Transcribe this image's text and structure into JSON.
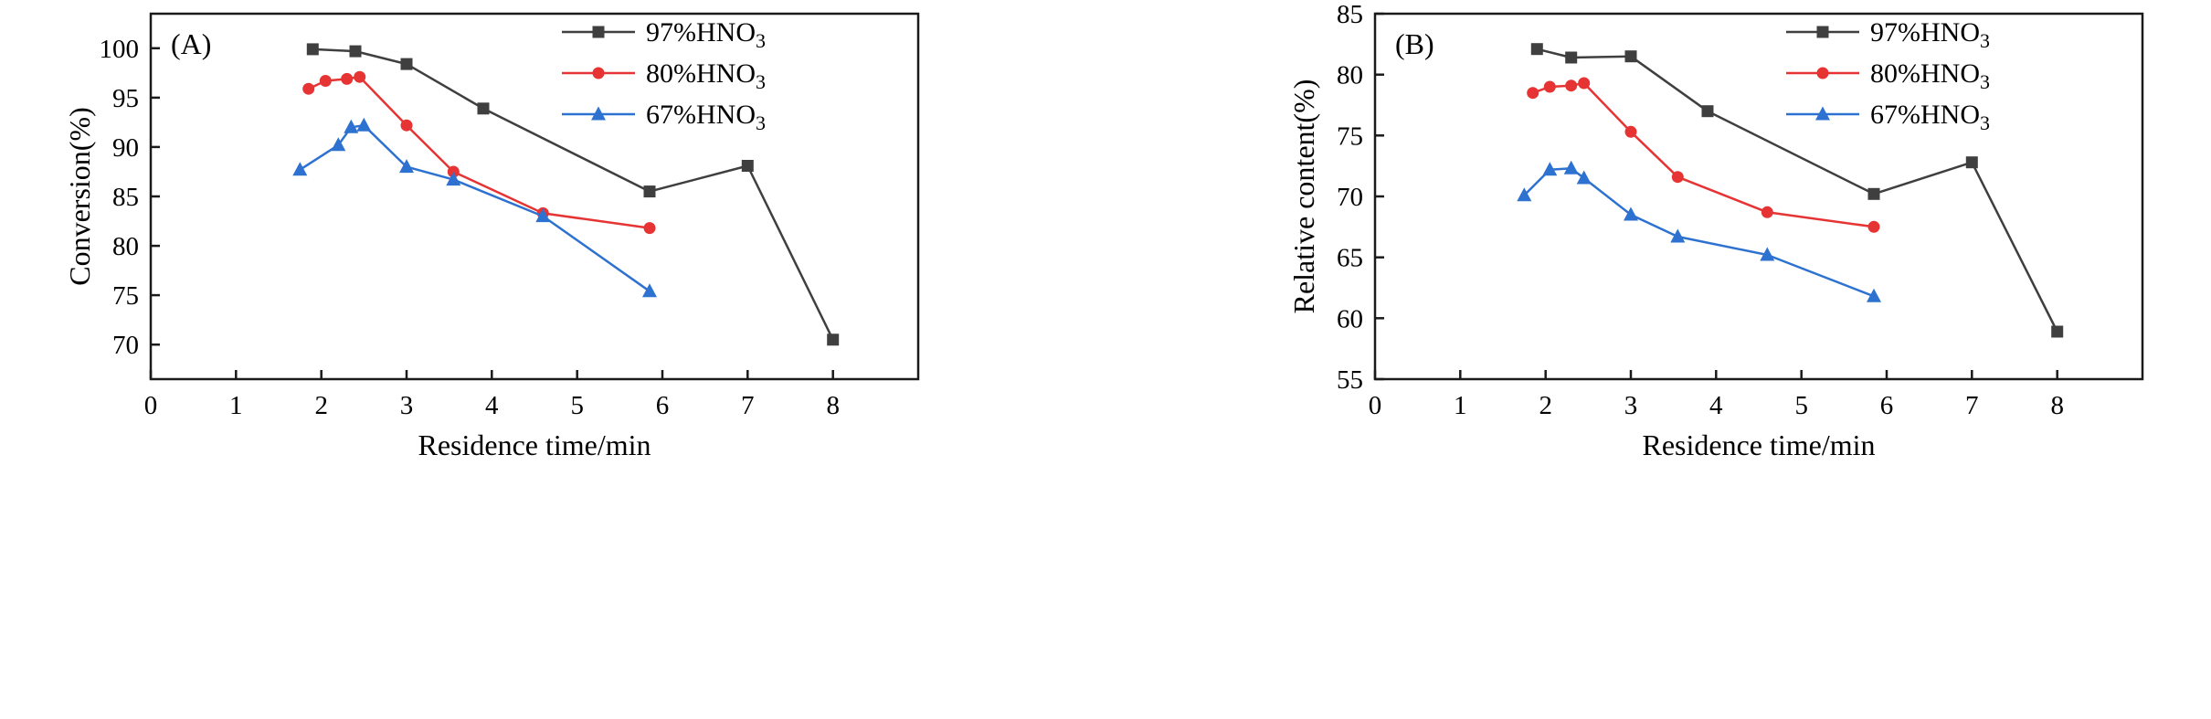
{
  "page": {
    "background": "#ffffff"
  },
  "chart_data": [
    {
      "type": "line",
      "panel_label": "(A)",
      "xlabel": "Residence time/min",
      "ylabel": "Conversion(%)",
      "xlim": [
        0,
        9
      ],
      "ylim": [
        66.5,
        103.5
      ],
      "xticks": [
        0,
        1,
        2,
        3,
        4,
        5,
        6,
        7,
        8
      ],
      "yticks": [
        70,
        75,
        80,
        85,
        90,
        95,
        100
      ],
      "grid": false,
      "legend_position": "top-right",
      "series": [
        {
          "name": "97%HNO3",
          "color": "#3f3f3f",
          "marker": "square",
          "x": [
            1.9,
            2.4,
            3.0,
            3.9,
            5.85,
            7.0,
            8.0
          ],
          "y": [
            99.9,
            99.7,
            98.4,
            93.9,
            85.5,
            88.1,
            70.5
          ]
        },
        {
          "name": "80%HNO3",
          "color": "#e63434",
          "marker": "circle",
          "x": [
            1.85,
            2.05,
            2.3,
            2.45,
            3.0,
            3.55,
            4.6,
            5.85
          ],
          "y": [
            95.9,
            96.7,
            96.9,
            97.1,
            92.2,
            87.5,
            83.3,
            81.8
          ]
        },
        {
          "name": "67%HNO3",
          "color": "#2d72d0",
          "marker": "triangle",
          "x": [
            1.75,
            2.2,
            2.35,
            2.5,
            3.0,
            3.55,
            4.6,
            5.85
          ],
          "y": [
            87.7,
            90.2,
            92.0,
            92.2,
            88.0,
            86.7,
            83.0,
            75.4
          ]
        }
      ]
    },
    {
      "type": "line",
      "panel_label": "(B)",
      "xlabel": "Residence time/min",
      "ylabel": "Relative content(%)",
      "xlim": [
        0,
        9
      ],
      "ylim": [
        55,
        85
      ],
      "xticks": [
        0,
        1,
        2,
        3,
        4,
        5,
        6,
        7,
        8
      ],
      "yticks": [
        55,
        60,
        65,
        70,
        75,
        80,
        85
      ],
      "grid": false,
      "legend_position": "top-right",
      "series": [
        {
          "name": "97%HNO3",
          "color": "#3f3f3f",
          "marker": "square",
          "x": [
            1.9,
            2.3,
            3.0,
            3.9,
            5.85,
            7.0,
            8.0
          ],
          "y": [
            82.1,
            81.4,
            81.5,
            77.0,
            70.2,
            72.8,
            58.9
          ]
        },
        {
          "name": "80%HNO3",
          "color": "#e63434",
          "marker": "circle",
          "x": [
            1.85,
            2.05,
            2.3,
            2.45,
            3.0,
            3.55,
            4.6,
            5.85
          ],
          "y": [
            78.5,
            79.0,
            79.1,
            79.3,
            75.3,
            71.6,
            68.7,
            67.5
          ]
        },
        {
          "name": "67%HNO3",
          "color": "#2d72d0",
          "marker": "triangle",
          "x": [
            1.75,
            2.05,
            2.3,
            2.45,
            3.0,
            3.55,
            4.6,
            5.85
          ],
          "y": [
            70.1,
            72.2,
            72.3,
            71.5,
            68.5,
            66.7,
            65.2,
            61.8
          ]
        }
      ]
    }
  ]
}
